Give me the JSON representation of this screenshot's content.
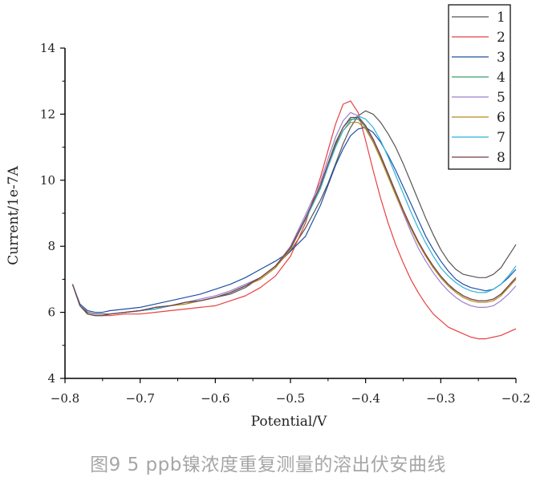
{
  "caption": "图9 5 ppb镍浓度重复测量的溶出伏安曲线",
  "chart_data": {
    "type": "line",
    "xlabel": "Potential/V",
    "ylabel": "Current/1e-7A",
    "xlim": [
      -0.8,
      -0.2
    ],
    "ylim": [
      4,
      14
    ],
    "xticks": [
      -0.8,
      -0.7,
      -0.6,
      -0.5,
      -0.4,
      -0.3,
      -0.2
    ],
    "xtick_labels": [
      "−0.8",
      "−0.7",
      "−0.6",
      "−0.5",
      "−0.4",
      "−0.3",
      "−0.2"
    ],
    "yticks": [
      4,
      6,
      8,
      10,
      12,
      14
    ],
    "ytick_labels": [
      "4",
      "6",
      "8",
      "10",
      "12",
      "14"
    ],
    "grid": false,
    "legend_position": "top-right",
    "x": [
      -0.79,
      -0.78,
      -0.77,
      -0.76,
      -0.75,
      -0.74,
      -0.72,
      -0.7,
      -0.68,
      -0.66,
      -0.64,
      -0.62,
      -0.6,
      -0.58,
      -0.56,
      -0.54,
      -0.52,
      -0.5,
      -0.48,
      -0.46,
      -0.45,
      -0.44,
      -0.43,
      -0.42,
      -0.41,
      -0.4,
      -0.39,
      -0.38,
      -0.37,
      -0.36,
      -0.35,
      -0.34,
      -0.33,
      -0.32,
      -0.31,
      -0.3,
      -0.29,
      -0.28,
      -0.27,
      -0.26,
      -0.25,
      -0.24,
      -0.23,
      -0.22,
      -0.21,
      -0.2
    ],
    "series": [
      {
        "name": "1",
        "color": "#555555",
        "values": [
          6.85,
          6.2,
          6.0,
          5.95,
          5.95,
          5.95,
          6.0,
          6.05,
          6.15,
          6.2,
          6.3,
          6.35,
          6.45,
          6.55,
          6.75,
          7.05,
          7.4,
          7.85,
          8.55,
          9.4,
          9.9,
          10.5,
          11.1,
          11.6,
          11.95,
          12.1,
          12.0,
          11.75,
          11.4,
          11.0,
          10.5,
          9.95,
          9.4,
          8.85,
          8.35,
          7.9,
          7.55,
          7.3,
          7.15,
          7.1,
          7.05,
          7.05,
          7.15,
          7.35,
          7.7,
          8.05
        ]
      },
      {
        "name": "2",
        "color": "#e84040",
        "values": [
          6.85,
          6.2,
          5.95,
          5.9,
          5.9,
          5.9,
          5.95,
          5.95,
          6.0,
          6.05,
          6.1,
          6.15,
          6.2,
          6.35,
          6.5,
          6.75,
          7.1,
          7.7,
          8.7,
          10.1,
          10.9,
          11.7,
          12.3,
          12.4,
          12.05,
          11.2,
          10.3,
          9.45,
          8.7,
          8.05,
          7.5,
          7.0,
          6.6,
          6.25,
          5.95,
          5.75,
          5.55,
          5.45,
          5.35,
          5.25,
          5.2,
          5.2,
          5.25,
          5.3,
          5.4,
          5.5
        ]
      },
      {
        "name": "3",
        "color": "#1f4fa5",
        "values": [
          6.85,
          6.25,
          6.05,
          6.0,
          6.0,
          6.05,
          6.1,
          6.15,
          6.25,
          6.35,
          6.45,
          6.55,
          6.7,
          6.85,
          7.05,
          7.3,
          7.55,
          7.85,
          8.3,
          9.25,
          9.85,
          10.45,
          10.95,
          11.35,
          11.55,
          11.6,
          11.45,
          11.15,
          10.75,
          10.3,
          9.8,
          9.3,
          8.8,
          8.3,
          7.9,
          7.55,
          7.25,
          7.0,
          6.85,
          6.75,
          6.7,
          6.65,
          6.7,
          6.85,
          7.05,
          7.3
        ]
      },
      {
        "name": "4",
        "color": "#3a9e6e",
        "values": [
          6.85,
          6.2,
          5.95,
          5.9,
          5.9,
          5.95,
          6.0,
          6.05,
          6.1,
          6.2,
          6.25,
          6.35,
          6.45,
          6.6,
          6.8,
          7.05,
          7.4,
          7.95,
          8.85,
          9.85,
          10.5,
          11.15,
          11.6,
          11.85,
          11.85,
          11.6,
          11.2,
          10.7,
          10.15,
          9.6,
          9.05,
          8.55,
          8.1,
          7.7,
          7.35,
          7.05,
          6.8,
          6.65,
          6.5,
          6.4,
          6.35,
          6.35,
          6.4,
          6.55,
          6.75,
          7.0
        ]
      },
      {
        "name": "5",
        "color": "#9b7fd1",
        "values": [
          6.85,
          6.2,
          5.95,
          5.9,
          5.9,
          5.95,
          6.0,
          6.05,
          6.15,
          6.2,
          6.3,
          6.4,
          6.5,
          6.65,
          6.85,
          7.05,
          7.4,
          8.0,
          8.95,
          9.95,
          10.65,
          11.3,
          11.8,
          12.05,
          11.95,
          11.65,
          11.2,
          10.65,
          10.1,
          9.55,
          9.0,
          8.45,
          7.95,
          7.55,
          7.2,
          6.9,
          6.65,
          6.45,
          6.3,
          6.2,
          6.15,
          6.15,
          6.2,
          6.35,
          6.55,
          6.8
        ]
      },
      {
        "name": "6",
        "color": "#b88a18",
        "values": [
          6.85,
          6.2,
          5.95,
          5.9,
          5.9,
          5.95,
          6.0,
          6.05,
          6.1,
          6.2,
          6.25,
          6.35,
          6.45,
          6.6,
          6.8,
          7.0,
          7.35,
          7.9,
          8.8,
          9.8,
          10.45,
          11.05,
          11.5,
          11.75,
          11.75,
          11.55,
          11.15,
          10.65,
          10.1,
          9.55,
          9.05,
          8.55,
          8.1,
          7.7,
          7.35,
          7.05,
          6.8,
          6.6,
          6.45,
          6.35,
          6.3,
          6.3,
          6.35,
          6.5,
          6.75,
          7.0
        ]
      },
      {
        "name": "7",
        "color": "#2bb5d6",
        "values": [
          6.85,
          6.2,
          5.95,
          5.9,
          5.9,
          5.95,
          6.0,
          6.05,
          6.1,
          6.2,
          6.3,
          6.35,
          6.45,
          6.6,
          6.8,
          7.05,
          7.4,
          7.95,
          8.8,
          9.75,
          10.4,
          11.0,
          11.5,
          11.8,
          11.95,
          11.85,
          11.6,
          11.2,
          10.7,
          10.15,
          9.6,
          9.05,
          8.55,
          8.1,
          7.7,
          7.35,
          7.1,
          6.9,
          6.75,
          6.65,
          6.6,
          6.6,
          6.7,
          6.85,
          7.1,
          7.4
        ]
      },
      {
        "name": "8",
        "color": "#7a3b45",
        "values": [
          6.85,
          6.2,
          5.95,
          5.9,
          5.9,
          5.95,
          6.0,
          6.05,
          6.15,
          6.2,
          6.3,
          6.35,
          6.45,
          6.6,
          6.8,
          7.05,
          7.4,
          7.95,
          8.85,
          9.85,
          10.5,
          11.1,
          11.6,
          11.9,
          11.9,
          11.65,
          11.25,
          10.75,
          10.2,
          9.65,
          9.1,
          8.6,
          8.15,
          7.75,
          7.4,
          7.1,
          6.85,
          6.65,
          6.5,
          6.4,
          6.35,
          6.35,
          6.4,
          6.55,
          6.8,
          7.05
        ]
      }
    ]
  }
}
